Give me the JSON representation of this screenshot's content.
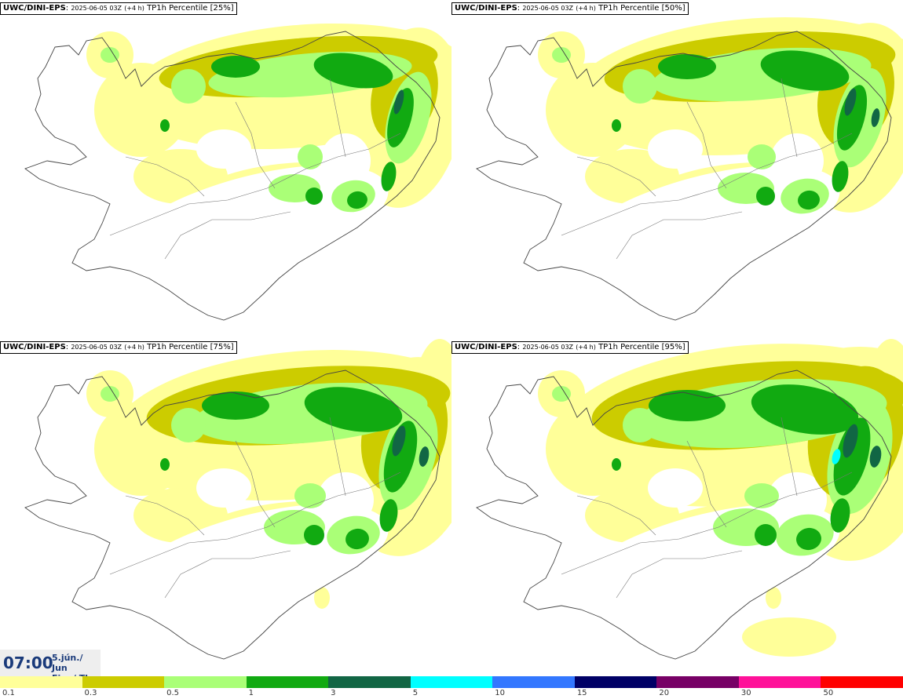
{
  "panels": [
    {
      "model": "UWC/DINI-EPS",
      "run": "2025-06-05 03Z",
      "lead": "(+4 h)",
      "field": "TP1h Percentile [25%]",
      "level": 1
    },
    {
      "model": "UWC/DINI-EPS",
      "run": "2025-06-05 03Z",
      "lead": "(+4 h)",
      "field": "TP1h Percentile [50%]",
      "level": 2
    },
    {
      "model": "UWC/DINI-EPS",
      "run": "2025-06-05 03Z",
      "lead": "(+4 h)",
      "field": "TP1h Percentile [75%]",
      "level": 3
    },
    {
      "model": "UWC/DINI-EPS",
      "run": "2025-06-05 03Z",
      "lead": "(+4 h)",
      "field": "TP1h Percentile [95%]",
      "level": 4
    }
  ],
  "valid_time": {
    "time": "07:00",
    "date_line1": "5.jún./ Jun",
    "date_line2": "Fim./ Thu"
  },
  "legend": {
    "colors": [
      "#ffff99",
      "#cccc00",
      "#aaff77",
      "#11aa11",
      "#116644",
      "#00ffff",
      "#3377ff",
      "#000066",
      "#770066",
      "#ff1199",
      "#ff0000"
    ],
    "ticks": [
      "0.1",
      "0.3",
      "0.5",
      "1",
      "3",
      "5",
      "10",
      "15",
      "20",
      "30",
      "50"
    ]
  }
}
